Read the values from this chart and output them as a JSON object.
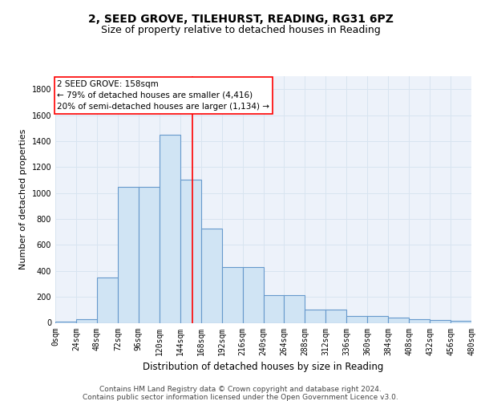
{
  "title": "2, SEED GROVE, TILEHURST, READING, RG31 6PZ",
  "subtitle": "Size of property relative to detached houses in Reading",
  "xlabel": "Distribution of detached houses by size in Reading",
  "ylabel": "Number of detached properties",
  "bar_edges": [
    0,
    24,
    48,
    72,
    96,
    120,
    144,
    168,
    192,
    216,
    240,
    264,
    288,
    312,
    336,
    360,
    384,
    408,
    432,
    456,
    480
  ],
  "bar_heights": [
    10,
    28,
    350,
    1050,
    1050,
    1450,
    1100,
    725,
    430,
    430,
    215,
    215,
    105,
    105,
    55,
    55,
    40,
    25,
    20,
    15
  ],
  "bar_color": "#d0e4f4",
  "bar_edge_color": "#6699cc",
  "bar_linewidth": 0.8,
  "red_line_x": 158,
  "ylim": [
    0,
    1900
  ],
  "yticks": [
    0,
    200,
    400,
    600,
    800,
    1000,
    1200,
    1400,
    1600,
    1800
  ],
  "xtick_labels": [
    "0sqm",
    "24sqm",
    "48sqm",
    "72sqm",
    "96sqm",
    "120sqm",
    "144sqm",
    "168sqm",
    "192sqm",
    "216sqm",
    "240sqm",
    "264sqm",
    "288sqm",
    "312sqm",
    "336sqm",
    "360sqm",
    "384sqm",
    "408sqm",
    "432sqm",
    "456sqm",
    "480sqm"
  ],
  "grid_color": "#d8e4f0",
  "bg_color": "#edf2fa",
  "annotation_line1": "2 SEED GROVE: 158sqm",
  "annotation_line2": "← 79% of detached houses are smaller (4,416)",
  "annotation_line3": "20% of semi-detached houses are larger (1,134) →",
  "footer1": "Contains HM Land Registry data © Crown copyright and database right 2024.",
  "footer2": "Contains public sector information licensed under the Open Government Licence v3.0.",
  "title_fontsize": 10,
  "subtitle_fontsize": 9,
  "xlabel_fontsize": 8.5,
  "ylabel_fontsize": 8,
  "tick_fontsize": 7,
  "annotation_fontsize": 7.5,
  "footer_fontsize": 6.5
}
